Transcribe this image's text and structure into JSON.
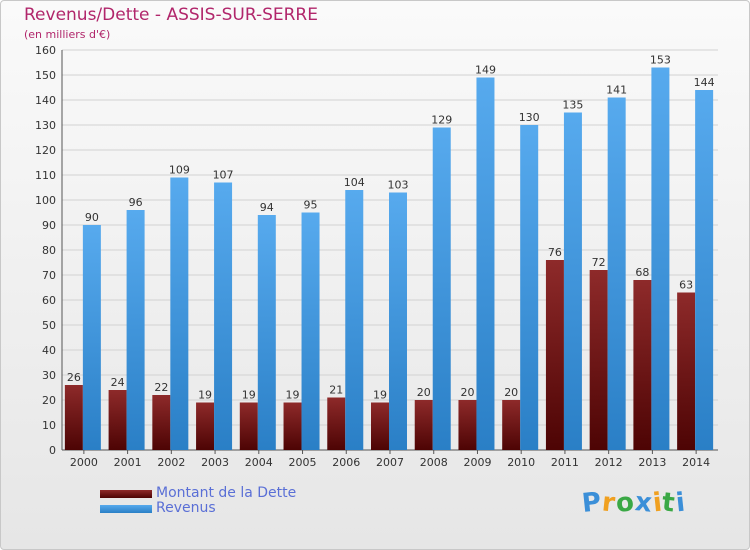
{
  "title": "Revenus/Dette - ASSIS-SUR-SERRE",
  "subtitle": "(en milliers d'€)",
  "chart_data": {
    "type": "bar",
    "categories": [
      "2000",
      "2001",
      "2002",
      "2003",
      "2004",
      "2005",
      "2006",
      "2007",
      "2008",
      "2009",
      "2010",
      "2011",
      "2012",
      "2013",
      "2014"
    ],
    "series": [
      {
        "name": "Montant de la Dette",
        "values": [
          26,
          24,
          22,
          19,
          19,
          19,
          21,
          19,
          20,
          20,
          20,
          76,
          72,
          68,
          63
        ],
        "color": "#7a1a1a"
      },
      {
        "name": "Revenus",
        "values": [
          90,
          96,
          109,
          107,
          94,
          95,
          104,
          103,
          129,
          149,
          130,
          135,
          141,
          153,
          144
        ],
        "color": "#3d97dd"
      }
    ],
    "y_ticks": [
      "0",
      "10",
      "20",
      "30",
      "40",
      "50",
      "60",
      "70",
      "80",
      "90",
      "100",
      "110",
      "120",
      "130",
      "140",
      "150",
      "160"
    ],
    "ylim": [
      0,
      160
    ],
    "grid": "horizontal",
    "legend": "bottom-left"
  },
  "legend": {
    "items": [
      {
        "label": "Montant de la Dette",
        "color": "#6b0f0f"
      },
      {
        "label": "Revenus",
        "color": "#3d97dd"
      }
    ]
  },
  "logo": {
    "letters": [
      "P",
      "r",
      "o",
      "x",
      "i",
      "t",
      "i"
    ],
    "colors": [
      "#3b8fd8",
      "#f0a020",
      "#3aa845",
      "#3b8fd8",
      "#f0a020",
      "#3aa845",
      "#3b8fd8"
    ]
  }
}
